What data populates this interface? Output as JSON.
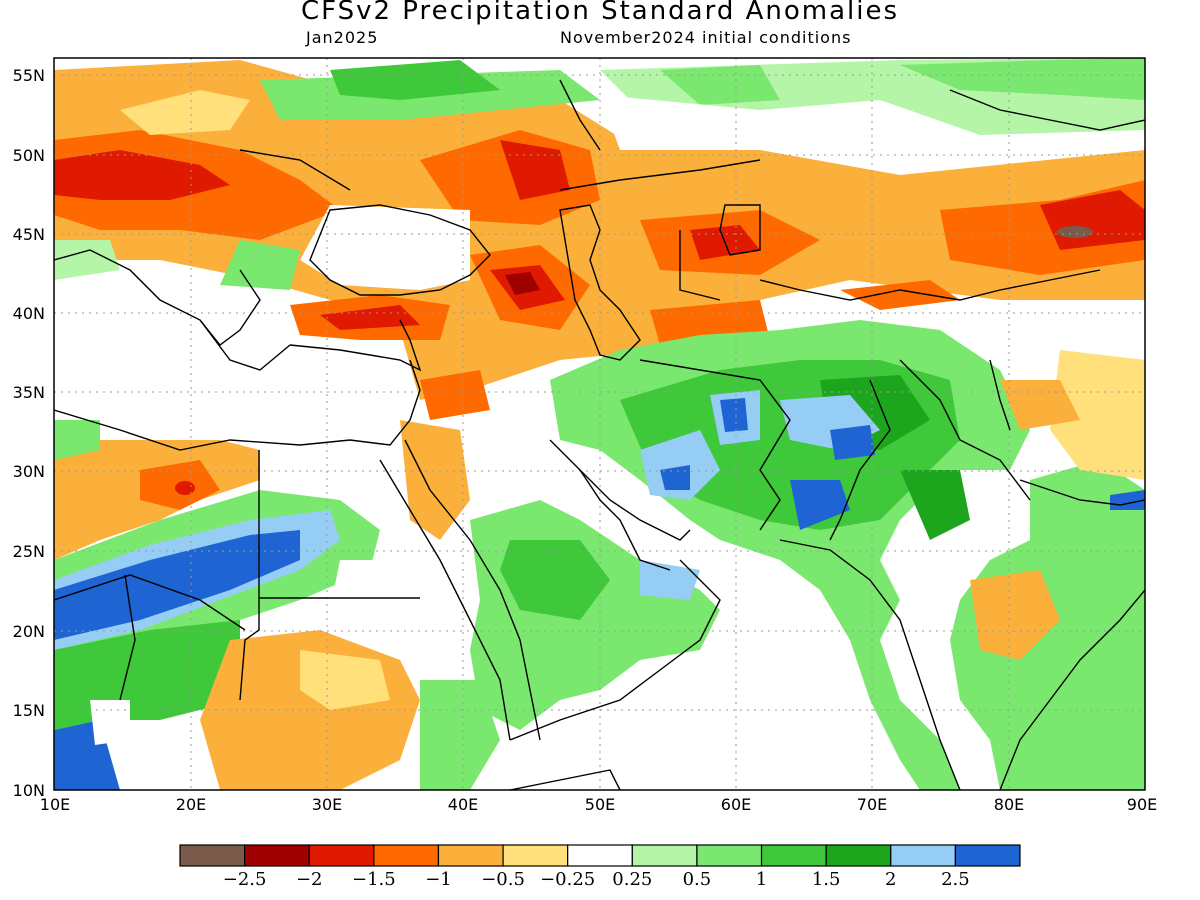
{
  "header": {
    "title": "CFSv2 Precipitation Standard Anomalies",
    "valid_month": "Jan2025",
    "init": "November2024 initial conditions"
  },
  "axes": {
    "lon_labels": [
      "10E",
      "20E",
      "30E",
      "40E",
      "50E",
      "60E",
      "70E",
      "80E",
      "90E"
    ],
    "lat_labels": [
      "55N",
      "50N",
      "45N",
      "40N",
      "35N",
      "30N",
      "25N",
      "20N",
      "15N",
      "10N"
    ]
  },
  "colorbar": {
    "colors": [
      "#7a5a4a",
      "#a00000",
      "#e01a00",
      "#ff6a00",
      "#fbb03b",
      "#ffe07a",
      "#ffffff",
      "#b4f5a8",
      "#7ae86e",
      "#3ec83a",
      "#1ea51e",
      "#96cdf5",
      "#1e64d2"
    ],
    "labels": [
      "−2.5",
      "−2",
      "−1.5",
      "−1",
      "−0.5",
      "−0.25",
      "0.25",
      "0.5",
      "1",
      "1.5",
      "2",
      "2.5"
    ]
  }
}
